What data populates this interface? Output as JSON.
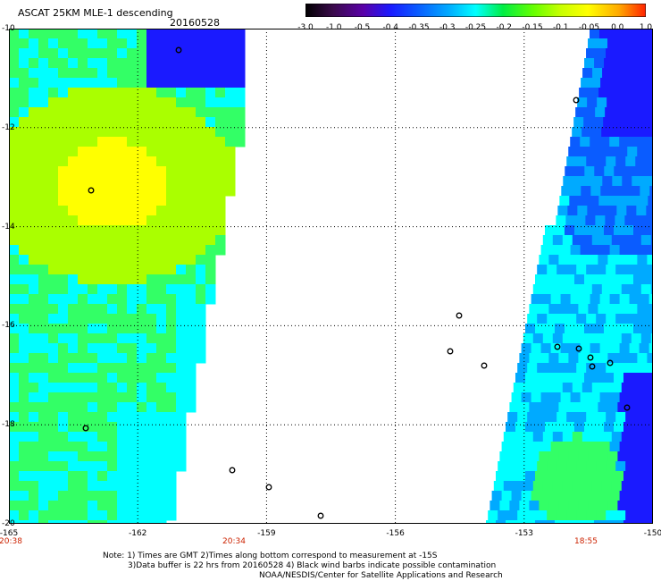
{
  "header": {
    "title": "ASCAT 25KM MLE-1 descending",
    "date": "20160528"
  },
  "colorbar": {
    "tick_labels": [
      "-3.0",
      "-1.0",
      "-0.5",
      "-0.4",
      "-0.35",
      "-0.3",
      "-0.25",
      "-0.2",
      "-0.15",
      "-0.1",
      "-0.05",
      "0.0",
      "1.0"
    ],
    "stops": [
      "#000000",
      "#3a0a4a",
      "#5a00a8",
      "#1a1aff",
      "#0a5cff",
      "#00aaff",
      "#00ffff",
      "#00ee44",
      "#66ff00",
      "#c8ff00",
      "#ffff00",
      "#ffaa00",
      "#ff2200"
    ]
  },
  "map": {
    "latitude_labels": [
      "-10",
      "-12",
      "-14",
      "-16",
      "-18",
      "-20"
    ],
    "longitude_labels": [
      "-165",
      "-162",
      "-159",
      "-156",
      "-153",
      "-150"
    ],
    "lat_range": [
      -20,
      -10
    ],
    "lon_range": [
      -165,
      -150
    ],
    "grid": "dotted",
    "swaths": [
      {
        "side": "west",
        "time": "20:38",
        "colors": [
          "#1a1aff",
          "#00ffff",
          "#33ff66",
          "#aaff00",
          "#ffff00"
        ]
      },
      {
        "side": "east",
        "time": "18:55",
        "colors": [
          "#1a1aff",
          "#0a5cff",
          "#00aaff",
          "#00ffff",
          "#33ff66"
        ]
      }
    ],
    "time_labels": [
      "20:38",
      "20:34",
      "18:55"
    ],
    "land_color": "#000000"
  },
  "footer": {
    "note_line1": "Note: 1) Times are GMT 2)Times along bottom correspond to measurement at -15S",
    "note_line2": "3)Data buffer is 22 hrs from 20160528 4) Black wind barbs indicate possible contamination",
    "credit": "NOAA/NESDIS/Center for Satellite Applications and Research"
  }
}
